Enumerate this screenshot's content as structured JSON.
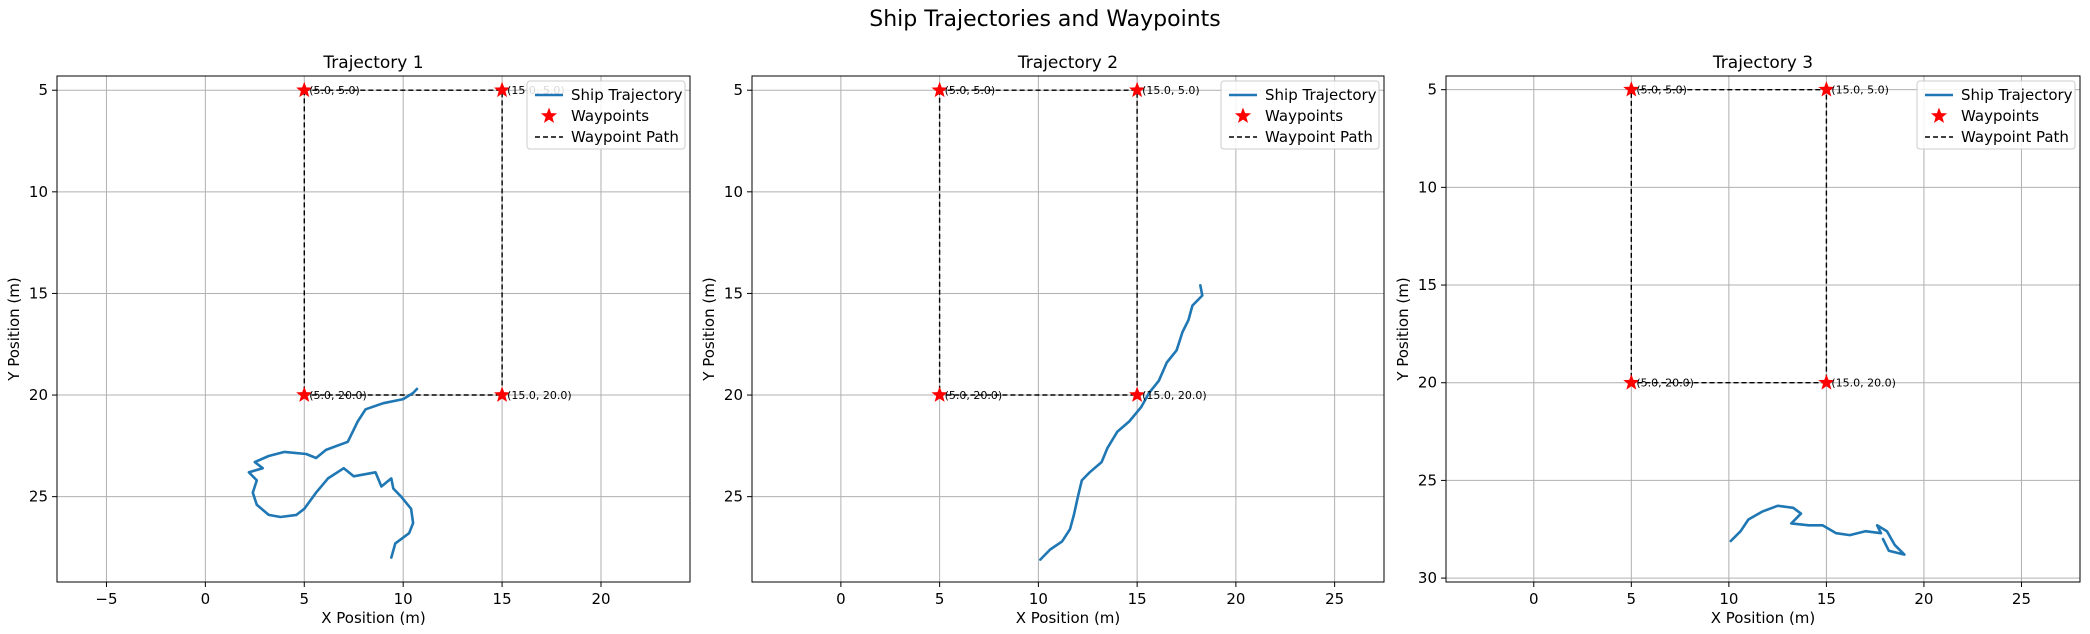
{
  "figure": {
    "title": "Ship Trajectories and Waypoints"
  },
  "legend": {
    "trajectory_label": "Ship Trajectory",
    "waypoints_label": "Waypoints",
    "path_label": "Waypoint Path"
  },
  "colors": {
    "trajectory": "#1f77b4",
    "waypoint": "#ff0000",
    "path": "#000000",
    "grid": "#b0b0b0"
  },
  "chart_data": [
    {
      "type": "line",
      "title": "Trajectory 1",
      "xlabel": "X Position (m)",
      "ylabel": "Y Position (m)",
      "xlim": [
        -7.5,
        24.5
      ],
      "ylim": [
        29.2,
        4.3
      ],
      "y_inverted": true,
      "grid": true,
      "legend_position": "top-right",
      "xticks": [
        -5,
        0,
        5,
        10,
        15,
        20
      ],
      "yticks": [
        5,
        10,
        15,
        20,
        25
      ],
      "waypoints": [
        [
          5.0,
          5.0
        ],
        [
          15.0,
          5.0
        ],
        [
          15.0,
          20.0
        ],
        [
          5.0,
          20.0
        ]
      ],
      "waypoint_labels": [
        "(5.0, 5.0)",
        "(15.0, 5.0)",
        "(15.0, 20.0)",
        "(5.0, 20.0)"
      ],
      "waypoint_path": [
        [
          5,
          5
        ],
        [
          15,
          5
        ],
        [
          15,
          20
        ],
        [
          5,
          20
        ],
        [
          5,
          5
        ]
      ],
      "trajectory": [
        [
          9.4,
          28.0
        ],
        [
          9.6,
          27.3
        ],
        [
          10.3,
          26.8
        ],
        [
          10.5,
          26.3
        ],
        [
          10.4,
          25.6
        ],
        [
          9.9,
          25.0
        ],
        [
          9.5,
          24.6
        ],
        [
          9.4,
          24.1
        ],
        [
          8.9,
          24.5
        ],
        [
          8.6,
          23.8
        ],
        [
          7.5,
          24.0
        ],
        [
          7.0,
          23.6
        ],
        [
          6.2,
          24.1
        ],
        [
          5.6,
          24.8
        ],
        [
          5.0,
          25.6
        ],
        [
          4.6,
          25.9
        ],
        [
          3.8,
          26.0
        ],
        [
          3.2,
          25.9
        ],
        [
          2.6,
          25.4
        ],
        [
          2.4,
          24.8
        ],
        [
          2.6,
          24.2
        ],
        [
          2.2,
          23.8
        ],
        [
          2.9,
          23.6
        ],
        [
          2.5,
          23.3
        ],
        [
          3.2,
          23.0
        ],
        [
          4.0,
          22.8
        ],
        [
          5.1,
          22.9
        ],
        [
          5.6,
          23.1
        ],
        [
          6.1,
          22.7
        ],
        [
          7.2,
          22.3
        ],
        [
          7.7,
          21.3
        ],
        [
          8.1,
          20.7
        ],
        [
          9.0,
          20.4
        ],
        [
          10.0,
          20.2
        ],
        [
          10.5,
          19.9
        ],
        [
          10.7,
          19.7
        ]
      ]
    },
    {
      "type": "line",
      "title": "Trajectory 2",
      "xlabel": "X Position (m)",
      "ylabel": "Y Position (m)",
      "xlim": [
        -4.5,
        27.5
      ],
      "ylim": [
        29.2,
        4.3
      ],
      "y_inverted": true,
      "grid": true,
      "legend_position": "top-right",
      "xticks": [
        0,
        5,
        10,
        15,
        20,
        25
      ],
      "yticks": [
        5,
        10,
        15,
        20,
        25
      ],
      "waypoints": [
        [
          5.0,
          5.0
        ],
        [
          15.0,
          5.0
        ],
        [
          15.0,
          20.0
        ],
        [
          5.0,
          20.0
        ]
      ],
      "waypoint_labels": [
        "(5.0, 5.0)",
        "(15.0, 5.0)",
        "(15.0, 20.0)",
        "(5.0, 20.0)"
      ],
      "waypoint_path": [
        [
          5,
          5
        ],
        [
          15,
          5
        ],
        [
          15,
          20
        ],
        [
          5,
          20
        ],
        [
          5,
          5
        ]
      ],
      "trajectory": [
        [
          10.1,
          28.1
        ],
        [
          10.6,
          27.6
        ],
        [
          11.2,
          27.2
        ],
        [
          11.6,
          26.6
        ],
        [
          11.8,
          25.9
        ],
        [
          12.0,
          25.0
        ],
        [
          12.2,
          24.2
        ],
        [
          12.6,
          23.8
        ],
        [
          13.2,
          23.3
        ],
        [
          13.5,
          22.6
        ],
        [
          14.0,
          21.8
        ],
        [
          14.6,
          21.3
        ],
        [
          15.2,
          20.6
        ],
        [
          15.6,
          19.9
        ],
        [
          16.1,
          19.3
        ],
        [
          16.5,
          18.4
        ],
        [
          17.0,
          17.8
        ],
        [
          17.3,
          16.9
        ],
        [
          17.6,
          16.3
        ],
        [
          17.8,
          15.6
        ],
        [
          18.3,
          15.1
        ],
        [
          18.2,
          14.6
        ]
      ]
    },
    {
      "type": "line",
      "title": "Trajectory 3",
      "xlabel": "X Position (m)",
      "ylabel": "Y Position (m)",
      "xlim": [
        -4.5,
        28.0
      ],
      "ylim": [
        30.2,
        4.3
      ],
      "y_inverted": true,
      "grid": true,
      "legend_position": "top-right",
      "xticks": [
        0,
        5,
        10,
        15,
        20,
        25
      ],
      "yticks": [
        5,
        10,
        15,
        20,
        25,
        30
      ],
      "waypoints": [
        [
          5.0,
          5.0
        ],
        [
          15.0,
          5.0
        ],
        [
          15.0,
          20.0
        ],
        [
          5.0,
          20.0
        ]
      ],
      "waypoint_labels": [
        "(5.0, 5.0)",
        "(15.0, 5.0)",
        "(15.0, 20.0)",
        "(5.0, 20.0)"
      ],
      "waypoint_path": [
        [
          5,
          5
        ],
        [
          15,
          5
        ],
        [
          15,
          20
        ],
        [
          5,
          20
        ],
        [
          5,
          5
        ]
      ],
      "trajectory": [
        [
          10.1,
          28.1
        ],
        [
          10.6,
          27.6
        ],
        [
          11.0,
          27.0
        ],
        [
          11.7,
          26.6
        ],
        [
          12.5,
          26.3
        ],
        [
          13.3,
          26.4
        ],
        [
          13.7,
          26.7
        ],
        [
          13.2,
          27.2
        ],
        [
          14.1,
          27.3
        ],
        [
          14.8,
          27.3
        ],
        [
          15.5,
          27.7
        ],
        [
          16.2,
          27.8
        ],
        [
          17.0,
          27.6
        ],
        [
          17.8,
          27.7
        ],
        [
          17.6,
          27.3
        ],
        [
          18.1,
          27.6
        ],
        [
          18.5,
          28.3
        ],
        [
          19.0,
          28.8
        ],
        [
          18.2,
          28.6
        ],
        [
          17.9,
          28.0
        ]
      ]
    }
  ]
}
